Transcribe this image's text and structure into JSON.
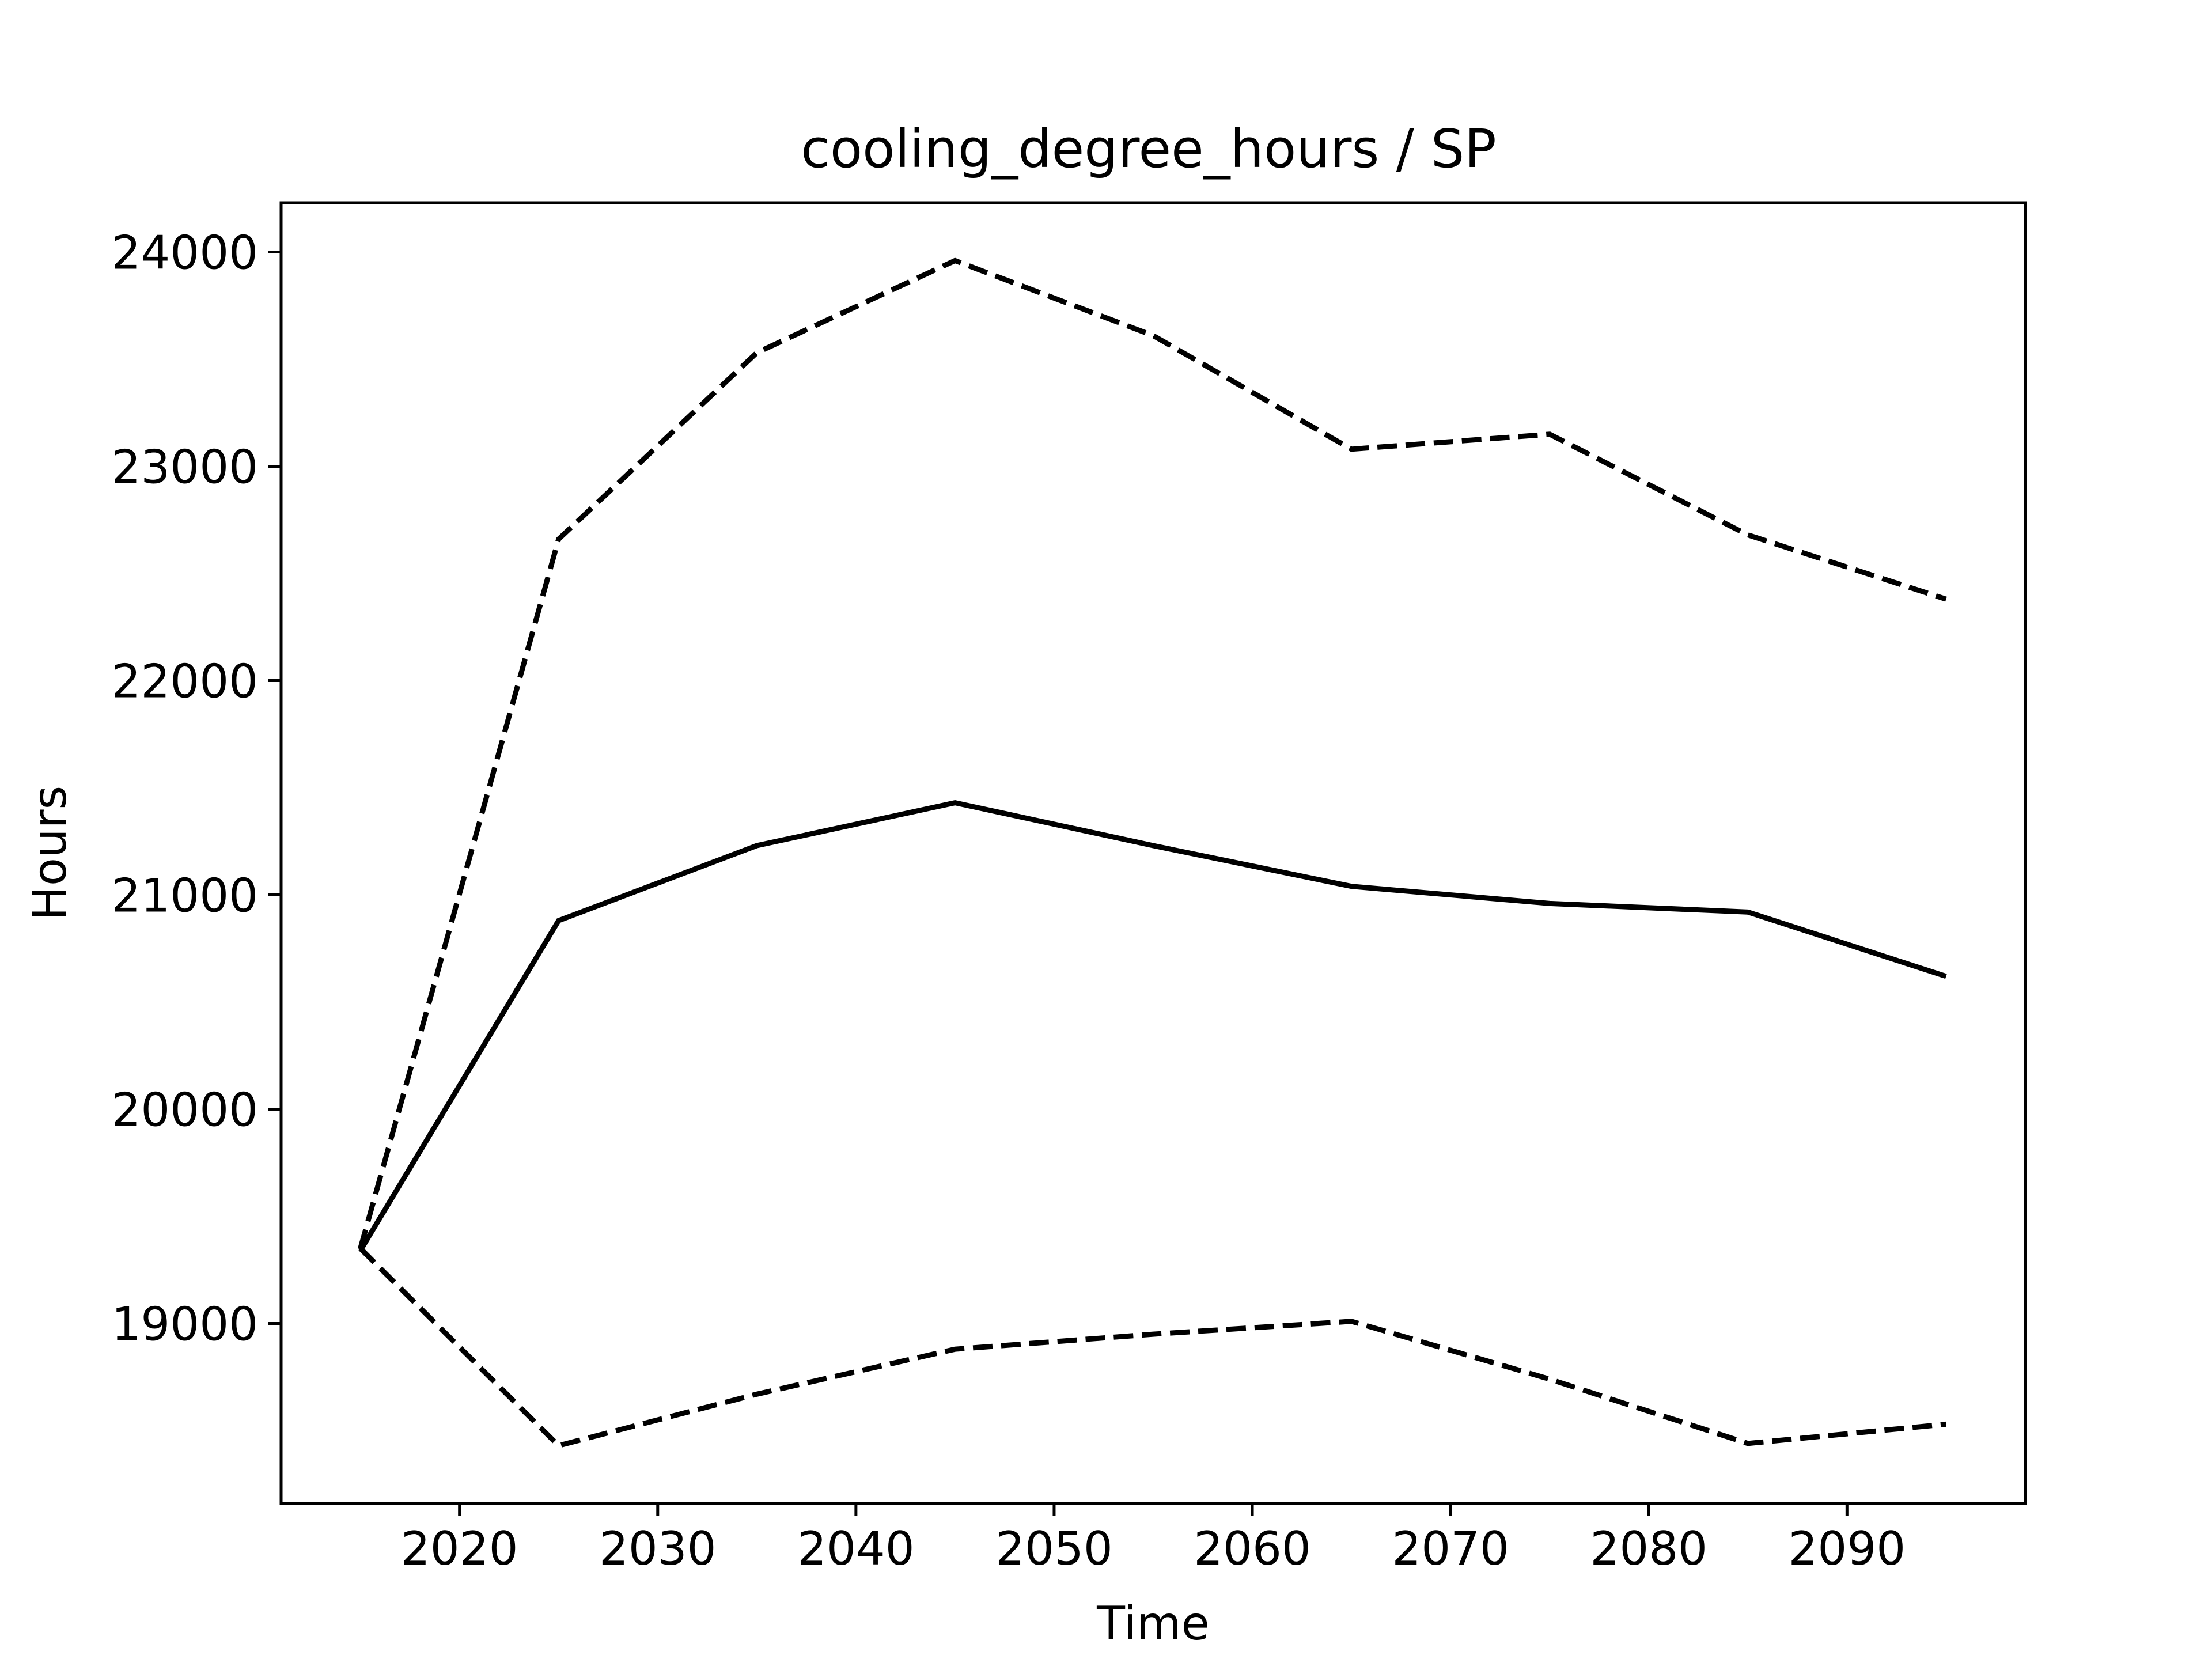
{
  "chart_data": {
    "type": "line",
    "title": "cooling_degree_hours / SP",
    "xlabel": "Time",
    "ylabel": "Hours",
    "xlim": [
      2011,
      2099
    ],
    "ylim": [
      18160,
      24230
    ],
    "xticks": [
      2020,
      2030,
      2040,
      2050,
      2060,
      2070,
      2080,
      2090
    ],
    "yticks": [
      19000,
      20000,
      21000,
      22000,
      23000,
      24000
    ],
    "grid": false,
    "legend": "none",
    "series": [
      {
        "style": "dashed",
        "color": "#000000",
        "x": [
          2015,
          2025,
          2035,
          2045,
          2055,
          2065,
          2075,
          2085,
          2095
        ],
        "y": [
          19350,
          22660,
          23530,
          23960,
          23610,
          23080,
          23150,
          22680,
          22380
        ]
      },
      {
        "style": "solid",
        "color": "#000000",
        "x": [
          2015,
          2025,
          2035,
          2045,
          2055,
          2065,
          2075,
          2085,
          2095
        ],
        "y": [
          19340,
          20880,
          21230,
          21430,
          21230,
          21040,
          20960,
          20920,
          20620
        ]
      },
      {
        "style": "dashed",
        "color": "#000000",
        "x": [
          2015,
          2025,
          2035,
          2045,
          2055,
          2065,
          2075,
          2085,
          2095
        ],
        "y": [
          19350,
          18430,
          18670,
          18880,
          18950,
          19010,
          18740,
          18440,
          18530
        ]
      }
    ]
  }
}
